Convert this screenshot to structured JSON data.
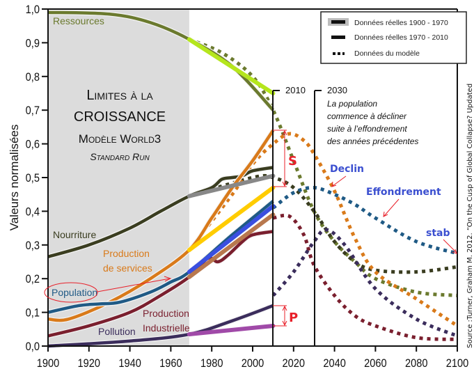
{
  "chart_data": {
    "type": "line",
    "title": [
      "Limites à la",
      "croissance",
      "Modèle World3",
      "Standard Run"
    ],
    "xlabel": "",
    "ylabel": "Valeurs normalisées",
    "xlim": [
      1900,
      2100
    ],
    "ylim": [
      0.0,
      1.0
    ],
    "xticks": [
      "1900",
      "1920",
      "1940",
      "1960",
      "1980",
      "2000",
      "2020",
      "2040",
      "2060",
      "2080",
      "2100"
    ],
    "yticks": [
      "0,0",
      "0,1",
      "0,2",
      "0,3",
      "0,4",
      "0,5",
      "0,6",
      "0,7",
      "0,8",
      "0,9",
      "1,0"
    ],
    "grid": false,
    "shaded_period": [
      1900,
      1969
    ],
    "legend": {
      "position": "top-right",
      "entries": [
        "Données réelles 1900 - 1970",
        "Données réelles 1970 - 2010",
        "Données du modèle"
      ]
    },
    "series": [
      {
        "name": "Ressources",
        "color": "#6b7a2e",
        "real": {
          "x": [
            1900,
            1930,
            1950,
            1969,
            1990,
            2010
          ],
          "y": [
            0.99,
            0.985,
            0.96,
            0.91,
            0.83,
            0.7
          ]
        },
        "model": {
          "x": [
            1969,
            1985,
            2000,
            2010,
            2020,
            2030,
            2040,
            2050,
            2060,
            2080,
            2100
          ],
          "y": [
            0.91,
            0.87,
            0.8,
            0.7,
            0.55,
            0.4,
            0.31,
            0.25,
            0.2,
            0.16,
            0.15
          ]
        },
        "trend": {
          "color": "#b5e61d",
          "x": [
            1969,
            2010
          ],
          "y": [
            0.91,
            0.75
          ]
        }
      },
      {
        "name": "Nourriture",
        "color": "#3a3d20",
        "real": {
          "x": [
            1900,
            1920,
            1940,
            1955,
            1969,
            1980,
            1985,
            1990,
            1995,
            2000,
            2010
          ],
          "y": [
            0.265,
            0.3,
            0.35,
            0.4,
            0.445,
            0.47,
            0.495,
            0.5,
            0.505,
            0.52,
            0.53
          ]
        },
        "model": {
          "x": [
            1969,
            2000,
            2010,
            2020,
            2030,
            2040,
            2050,
            2060,
            2080,
            2100
          ],
          "y": [
            0.445,
            0.5,
            0.5,
            0.47,
            0.4,
            0.31,
            0.25,
            0.225,
            0.22,
            0.235
          ]
        },
        "trend": {
          "color": "#888888",
          "x": [
            1969,
            2010
          ],
          "y": [
            0.445,
            0.505
          ]
        }
      },
      {
        "name": "Production de services",
        "color": "#d97a1a",
        "real": {
          "x": [
            1900,
            1910,
            1930,
            1950,
            1969,
            1980,
            1990,
            2000,
            2010
          ],
          "y": [
            0.08,
            0.08,
            0.13,
            0.2,
            0.285,
            0.38,
            0.47,
            0.55,
            0.64
          ]
        },
        "model": {
          "x": [
            1969,
            1990,
            2000,
            2010,
            2018,
            2025,
            2030,
            2040,
            2050,
            2060,
            2080,
            2100
          ],
          "y": [
            0.285,
            0.45,
            0.54,
            0.6,
            0.63,
            0.61,
            0.57,
            0.46,
            0.32,
            0.22,
            0.14,
            0.06
          ]
        },
        "trend": {
          "color": "#ffcc00",
          "x": [
            1969,
            2010
          ],
          "y": [
            0.285,
            0.47
          ]
        }
      },
      {
        "name": "Population",
        "color": "#1f5a85",
        "real": {
          "x": [
            1900,
            1915,
            1925,
            1935,
            1950,
            1960,
            1969,
            1990,
            2010
          ],
          "y": [
            0.1,
            0.12,
            0.125,
            0.13,
            0.16,
            0.19,
            0.22,
            0.33,
            0.43
          ]
        },
        "model": {
          "x": [
            2010,
            2020,
            2030,
            2040,
            2050,
            2060,
            2080,
            2100
          ],
          "y": [
            0.41,
            0.455,
            0.47,
            0.45,
            0.42,
            0.38,
            0.31,
            0.275
          ]
        },
        "trend": {
          "color": "#3a4fe0",
          "x": [
            1969,
            2010
          ],
          "y": [
            0.22,
            0.415
          ]
        }
      },
      {
        "name": "Production Industrielle",
        "color": "#7a1f2e",
        "real": {
          "x": [
            1900,
            1920,
            1940,
            1955,
            1969,
            1978,
            1983,
            1988,
            1995,
            2000,
            2010
          ],
          "y": [
            0.03,
            0.06,
            0.1,
            0.15,
            0.205,
            0.26,
            0.25,
            0.27,
            0.31,
            0.33,
            0.34
          ]
        },
        "model": {
          "x": [
            2010,
            2018,
            2025,
            2030,
            2040,
            2050,
            2060,
            2080,
            2100
          ],
          "y": [
            0.38,
            0.385,
            0.33,
            0.24,
            0.15,
            0.09,
            0.06,
            0.025,
            0.02
          ]
        },
        "trend": {
          "color": "#b8784e",
          "x": [
            1969,
            2010
          ],
          "y": [
            0.205,
            0.39
          ]
        }
      },
      {
        "name": "Pollution",
        "color": "#3b2d5c",
        "real": {
          "x": [
            1900,
            1940,
            1969,
            1990,
            2010
          ],
          "y": [
            0.0,
            0.015,
            0.035,
            0.075,
            0.12
          ]
        },
        "model": {
          "x": [
            2010,
            2020,
            2030,
            2036,
            2045,
            2060,
            2080,
            2100
          ],
          "y": [
            0.15,
            0.22,
            0.31,
            0.345,
            0.3,
            0.17,
            0.08,
            0.03
          ]
        },
        "trend": {
          "color": "#a04aa8",
          "x": [
            1969,
            2010
          ],
          "y": [
            0.035,
            0.06
          ]
        }
      }
    ],
    "annotations": {
      "year_2010": "2010",
      "year_2030": "2030",
      "note_2030": [
        "La population",
        "commence à décliner",
        "suite à l’effondrement",
        "des années précédentes"
      ],
      "declin": "Declin",
      "effondrement": "Effondrement",
      "stab": "stab",
      "S": "S",
      "P": "P"
    },
    "source": "Source :Turner, Graham M. 2012. “On the Cusp of Global Collapse? Updated"
  }
}
